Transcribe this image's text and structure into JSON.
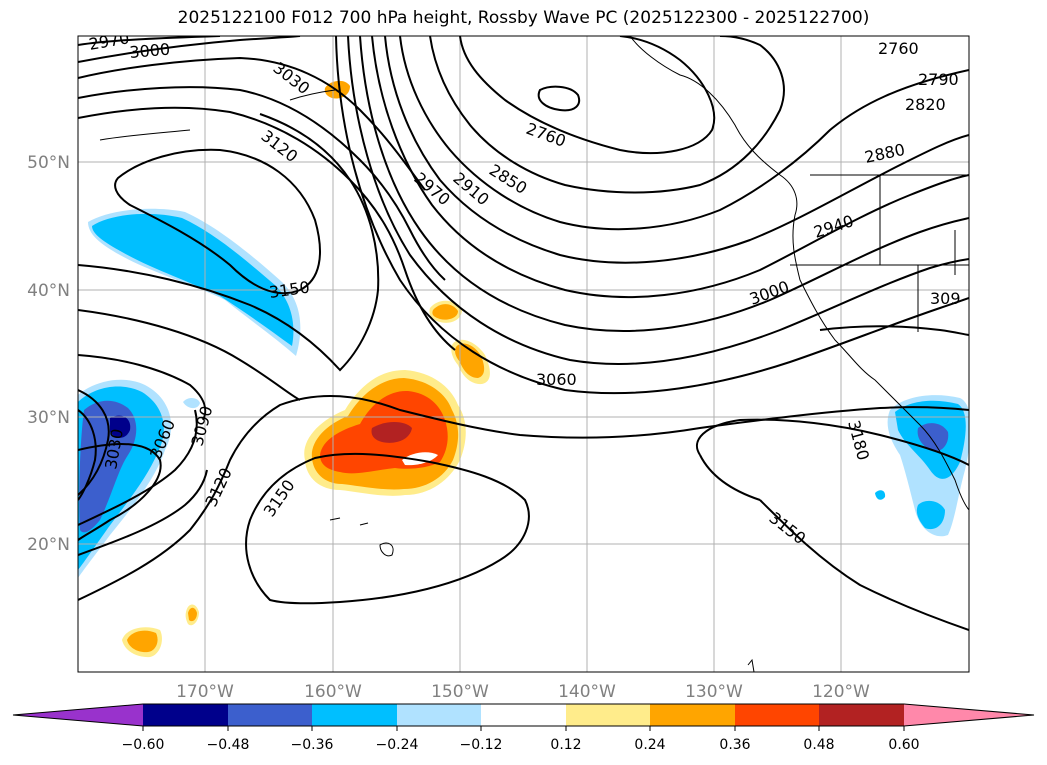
{
  "title": "2025122100 F012 700 hPa height, Rossby Wave PC (2025122300 - 2025122700)",
  "lat_labels": [
    "50°N",
    "40°N",
    "30°N",
    "20°N"
  ],
  "lon_labels": [
    "170°W",
    "160°W",
    "150°W",
    "140°W",
    "130°W",
    "120°W"
  ],
  "contour_labels": [
    "2970",
    "3000",
    "3030",
    "3120",
    "2760",
    "2850",
    "2970",
    "2910",
    "2760",
    "2790",
    "2820",
    "2880",
    "2940",
    "3000",
    "309",
    "3150",
    "3060",
    "3030",
    "3060",
    "3090",
    "3120",
    "3150",
    "3180",
    "3150"
  ],
  "colorbar": {
    "ticks": [
      "−0.60",
      "−0.48",
      "−0.36",
      "−0.24",
      "−0.12",
      "0.12",
      "0.24",
      "0.36",
      "0.48",
      "0.60"
    ],
    "colors": [
      "#9932cc",
      "#00008b",
      "#3c5fcd",
      "#00bfff",
      "#b0e2ff",
      "#ffffff",
      "#ffec8b",
      "#ffa500",
      "#ff4500",
      "#b22222",
      "#ff88aa"
    ]
  }
}
